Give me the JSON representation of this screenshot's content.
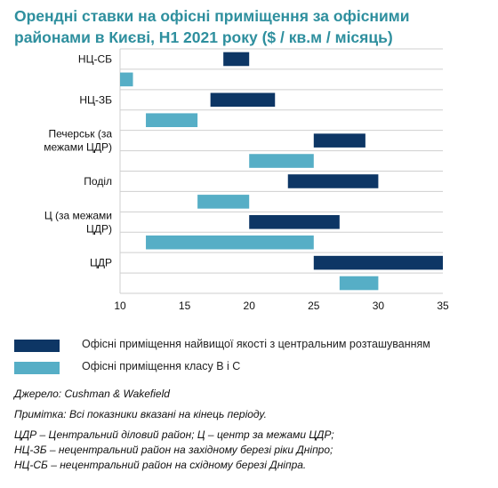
{
  "chart_data": {
    "type": "bar",
    "orientation": "horizontal-range",
    "title": "Орендні ставки на офісні приміщення за офісними районами в Києві, Н1 2021 року ($ / кв.м / місяць)",
    "categories": [
      {
        "lines": [
          "НЦ-СБ"
        ]
      },
      {
        "lines": [
          "НЦ-ЗБ"
        ]
      },
      {
        "lines": [
          "Печерськ (за",
          "межами ЦДР)"
        ]
      },
      {
        "lines": [
          "Поділ"
        ]
      },
      {
        "lines": [
          "Ц (за межами",
          "ЦДР)"
        ]
      },
      {
        "lines": [
          "ЦДР"
        ]
      }
    ],
    "series": [
      {
        "name": "Офісні приміщення найвищої якості з центральним розташуванням",
        "color": "#0d3665",
        "ranges": [
          [
            18,
            20
          ],
          [
            17,
            22
          ],
          [
            25,
            29
          ],
          [
            23,
            30
          ],
          [
            20,
            27
          ],
          [
            25,
            35
          ]
        ]
      },
      {
        "name": "Офісні приміщення класу B і C",
        "color": "#56aec6",
        "ranges": [
          [
            10,
            11
          ],
          [
            12,
            16
          ],
          [
            20,
            25
          ],
          [
            16,
            20
          ],
          [
            12,
            25
          ],
          [
            27,
            30
          ]
        ]
      }
    ],
    "xlim": [
      10,
      35
    ],
    "xticks": [
      10,
      15,
      20,
      25,
      30,
      35
    ],
    "grid": "horizontal",
    "legend_position": "bottom"
  },
  "notes": {
    "source": "Джерело: Cushman & Wakefield",
    "remark": "Примітка: Всі показники вказані на кінець періоду.",
    "abbr1": "ЦДР – Центральний діловий район; Ц – центр за межами ЦДР;",
    "abbr2": "НЦ-ЗБ – нецентральний район на західному березі ріки Дніпро;",
    "abbr3": "НЦ-СБ – нецентральний район на східному березі Дніпра."
  }
}
